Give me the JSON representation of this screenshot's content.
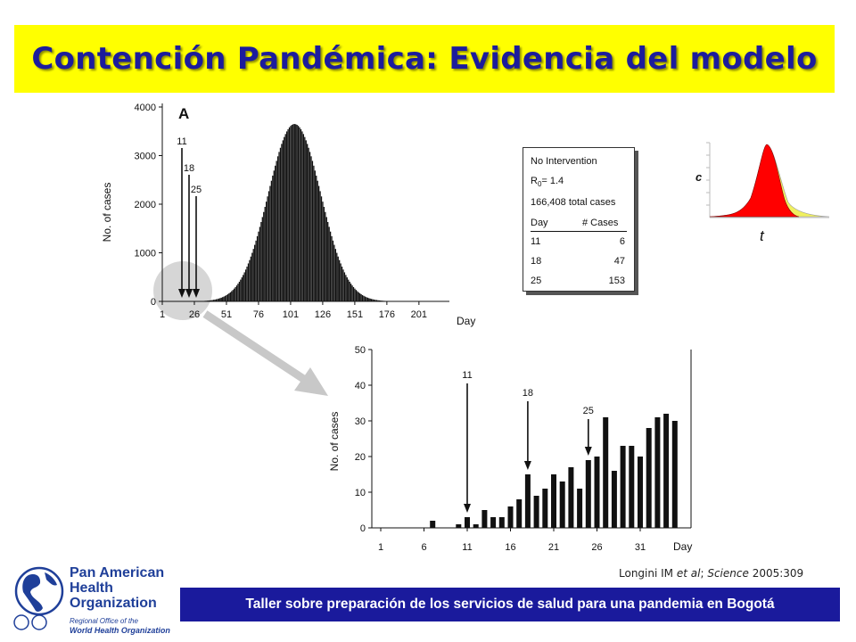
{
  "title": "Contención Pandémica: Evidencia del modelo",
  "footer_text": "Taller sobre preparación de los servicios de salud para una pandemia en Bogotá",
  "citation": {
    "authors": "Longini IM",
    "etal": "et al",
    "sep": ";",
    "journal": "Science",
    "ref": "2005:309"
  },
  "logo": {
    "line1": "Pan American",
    "line2": "Health",
    "line3": "Organization",
    "sub1": "Regional Office of the",
    "sub2": "World Health Organization"
  },
  "colors": {
    "banner": "#ffff00",
    "title": "#1c1c9c",
    "footer": "#1a1a9c",
    "bars": "#111111",
    "curve_fill": "#ff0000",
    "curve_tail": "#f0f060"
  },
  "info_box": {
    "line1": "No Intervention",
    "r0_label": "R",
    "r0_sub": "0",
    "r0_value": "= 1.4",
    "total": "166,408 total cases",
    "col1": "Day",
    "col2": "# Cases",
    "rows": [
      {
        "day": "11",
        "cases": "6"
      },
      {
        "day": "18",
        "cases": "47"
      },
      {
        "day": "25",
        "cases": "153"
      }
    ]
  },
  "chart_data": [
    {
      "type": "bar",
      "panel_label": "A",
      "xlabel": "Day",
      "ylabel": "No. of cases",
      "xlim": [
        1,
        215
      ],
      "ylim": [
        0,
        4000
      ],
      "x_ticks": [
        "1",
        "26",
        "51",
        "76",
        "101",
        "126",
        "151",
        "176",
        "201"
      ],
      "y_ticks": [
        "0",
        "1000",
        "2000",
        "3000",
        "4000"
      ],
      "peak_day": 104,
      "peak_cases": 3650,
      "last_day": 200,
      "annotations": [
        {
          "label": "11",
          "day": 11
        },
        {
          "label": "18",
          "day": 18
        },
        {
          "label": "25",
          "day": 25
        }
      ]
    },
    {
      "type": "bar",
      "xlabel": "Day",
      "ylabel": "No. of cases",
      "ylim": [
        0,
        50
      ],
      "x_ticks": [
        "1",
        "6",
        "11",
        "16",
        "21",
        "26",
        "31"
      ],
      "y_ticks": [
        "0",
        "10",
        "20",
        "30",
        "40",
        "50"
      ],
      "days": [
        7,
        10,
        11,
        12,
        13,
        14,
        15,
        16,
        17,
        18,
        19,
        20,
        21,
        22,
        23,
        24,
        25,
        26,
        27,
        28,
        29,
        30,
        31,
        32,
        33,
        34,
        35
      ],
      "values": [
        2,
        1,
        3,
        1,
        5,
        3,
        3,
        6,
        8,
        15,
        9,
        11,
        15,
        13,
        17,
        11,
        19,
        20,
        31,
        16,
        23,
        23,
        20,
        28,
        31,
        32,
        30
      ],
      "annotations": [
        {
          "label": "11",
          "day": 11
        },
        {
          "label": "18",
          "day": 18
        },
        {
          "label": "25",
          "day": 25
        }
      ]
    },
    {
      "type": "area",
      "ylabel": "c",
      "xlabel": "t",
      "grid": false
    }
  ]
}
